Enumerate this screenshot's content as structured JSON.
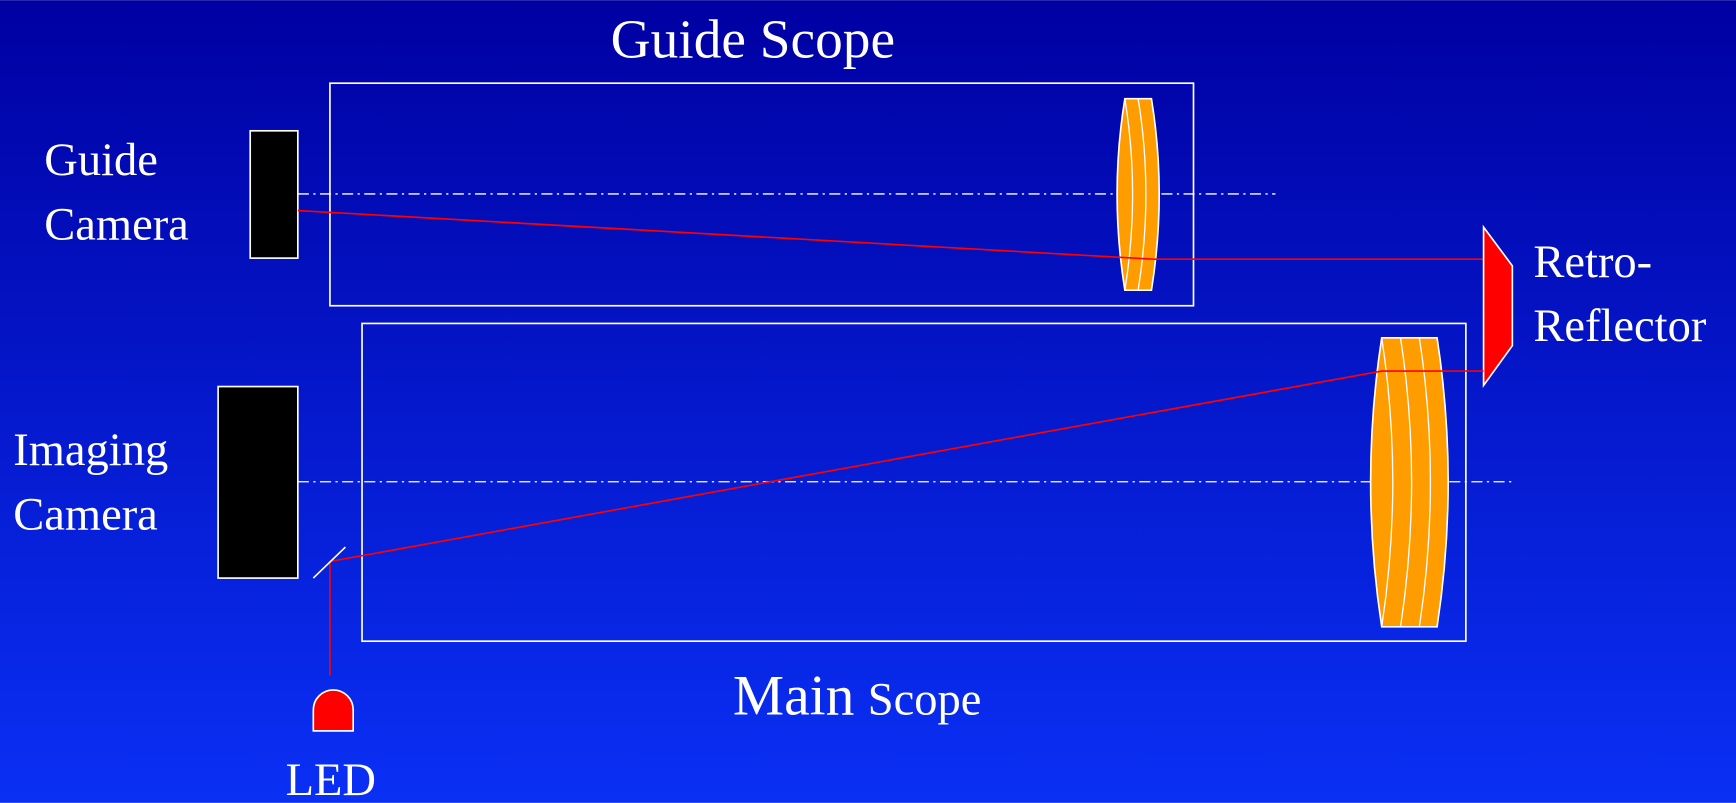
{
  "guide_scope": {
    "title": "Guide Scope"
  },
  "guide_camera": {
    "lines": [
      "Guide",
      "Camera"
    ]
  },
  "retro_reflector": {
    "lines": [
      "Retro-",
      "Reflector"
    ]
  },
  "imaging_camera": {
    "lines": [
      "Imaging",
      "Camera"
    ]
  },
  "main_scope": {
    "main": "Main",
    "scope": "Scope"
  },
  "led": {
    "label": "LED"
  }
}
